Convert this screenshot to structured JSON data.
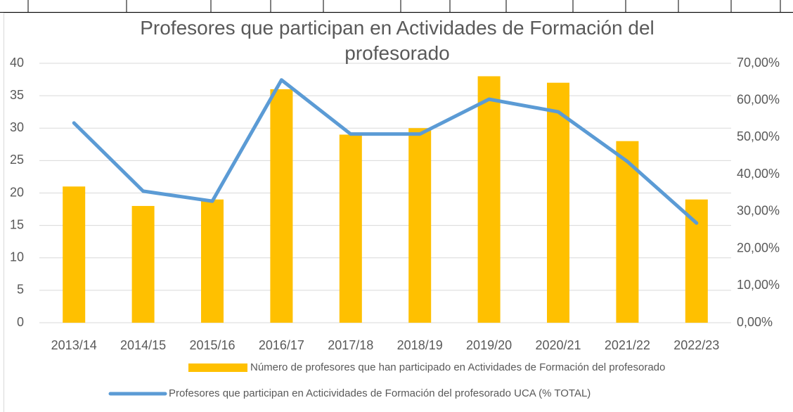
{
  "chart_data": {
    "type": "bar_line",
    "title": "Profesores que participan en Actividades de Formación del profesorado",
    "categories": [
      "2013/14",
      "2014/15",
      "2015/16",
      "2016/17",
      "2017/18",
      "2018/19",
      "2019/20",
      "2020/21",
      "2021/22",
      "2022/23"
    ],
    "series": [
      {
        "name": "Número de profesores que han participado en Actividades de Formación del profesorado",
        "color": "#ffc000",
        "type": "bar",
        "axis": "y",
        "values": [
          21,
          18,
          19,
          36,
          29,
          30,
          38,
          37,
          28,
          19
        ]
      },
      {
        "name": "Profesores que participan en Acticividades de Formación del profesorado UCA (% TOTAL)",
        "color": "#5b9bd5",
        "type": "line",
        "axis": "y2",
        "values": [
          53.9,
          35.5,
          32.8,
          65.5,
          50.9,
          50.9,
          60.3,
          56.9,
          43.5,
          26.9
        ]
      }
    ],
    "ylim": [
      0,
      40
    ],
    "yticks": [
      0,
      5,
      10,
      15,
      20,
      25,
      30,
      35,
      40
    ],
    "y2lim": [
      0,
      70
    ],
    "y2ticks": [
      {
        "value": 0,
        "label": "0,00%"
      },
      {
        "value": 10,
        "label": "10,00%"
      },
      {
        "value": 20,
        "label": "20,00%"
      },
      {
        "value": 30,
        "label": "30,00%"
      },
      {
        "value": 40,
        "label": "40,00%"
      },
      {
        "value": 50,
        "label": "50,00%"
      },
      {
        "value": 60,
        "label": "60,00%"
      },
      {
        "value": 70,
        "label": "70,00%"
      }
    ],
    "grid": true,
    "legend": "bottom"
  }
}
